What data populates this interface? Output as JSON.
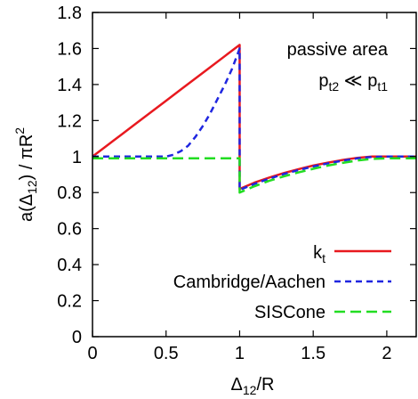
{
  "chart_data": {
    "type": "line",
    "xlabel_main": "Δ",
    "xlabel_sub": "12",
    "xlabel_tail": "/R",
    "ylabel_pre": "a(Δ",
    "ylabel_sub": "12",
    "ylabel_mid": ") / πR",
    "ylabel_sup": "2",
    "xlim": [
      0,
      2.2
    ],
    "ylim": [
      0,
      1.8
    ],
    "x_ticks": [
      0,
      0.5,
      1,
      1.5,
      2
    ],
    "x_tick_labels": [
      "0",
      "0.5",
      "1",
      "1.5",
      "2"
    ],
    "y_ticks": [
      0,
      0.2,
      0.4,
      0.6,
      0.8,
      1,
      1.2,
      1.4,
      1.6,
      1.8
    ],
    "y_tick_labels": [
      "0",
      "0.2",
      "0.4",
      "0.6",
      "0.8",
      "1",
      "1.2",
      "1.4",
      "1.6",
      "1.8"
    ],
    "grid": false,
    "legend_position": "bottom-right",
    "annotation_line1": "passive area",
    "annotation_line2_base1": "p",
    "annotation_line2_sub1": "t2",
    "annotation_line2_op": " ≪ ",
    "annotation_line2_base2": "p",
    "annotation_line2_sub2": "t1",
    "series": [
      {
        "name_base": "k",
        "name_sub": "t",
        "color": "#e8191f",
        "style": "solid",
        "x": [
          0,
          0.1,
          0.2,
          0.3,
          0.4,
          0.5,
          0.6,
          0.7,
          0.8,
          0.9,
          1.0,
          1.0,
          1.1,
          1.2,
          1.3,
          1.4,
          1.5,
          1.6,
          1.7,
          1.8,
          1.9,
          2.0,
          2.2
        ],
        "y": [
          1.0,
          1.062,
          1.124,
          1.186,
          1.248,
          1.31,
          1.372,
          1.434,
          1.496,
          1.558,
          1.62,
          0.82,
          0.855,
          0.883,
          0.908,
          0.93,
          0.95,
          0.966,
          0.981,
          0.993,
          1.0,
          1.0,
          1.0
        ]
      },
      {
        "name": "Cambridge/Aachen",
        "color": "#1f26e0",
        "style": "dashed",
        "x": [
          0,
          0.1,
          0.2,
          0.3,
          0.4,
          0.5,
          0.55,
          0.6,
          0.65,
          0.7,
          0.75,
          0.8,
          0.85,
          0.9,
          0.95,
          1.0,
          1.0,
          1.1,
          1.2,
          1.3,
          1.4,
          1.5,
          1.6,
          1.7,
          1.8,
          1.9,
          2.0,
          2.2
        ],
        "y": [
          1.0,
          1.0,
          1.0,
          1.0,
          1.0,
          1.0,
          1.01,
          1.03,
          1.06,
          1.11,
          1.17,
          1.24,
          1.32,
          1.4,
          1.49,
          1.6,
          0.815,
          0.848,
          0.877,
          0.903,
          0.925,
          0.945,
          0.962,
          0.977,
          0.99,
          0.998,
          1.0,
          1.0
        ]
      },
      {
        "name": "SISCone",
        "color": "#22dd22",
        "style": "dashed",
        "x": [
          0,
          0.5,
          1.0,
          1.0,
          1.1,
          1.2,
          1.3,
          1.4,
          1.5,
          1.6,
          1.7,
          1.8,
          1.9,
          2.0,
          2.2
        ],
        "y": [
          0.99,
          0.99,
          0.99,
          0.8,
          0.835,
          0.865,
          0.89,
          0.912,
          0.932,
          0.95,
          0.965,
          0.978,
          0.987,
          0.99,
          0.99
        ]
      }
    ]
  }
}
